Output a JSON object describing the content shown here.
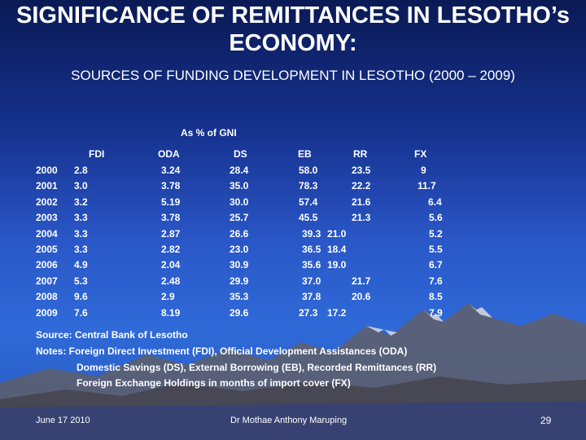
{
  "slide": {
    "title": "SIGNIFICANCE OF REMITTANCES IN LESOTHO’s ECONOMY:",
    "subtitle": "SOURCES OF FUNDING DEVELOPMENT IN LESOTHO (2000 – 2009)",
    "unit_note": "As % of GNI",
    "table": {
      "columns": [
        "FDI",
        "ODA",
        "DS",
        "EB",
        "RR",
        "FX"
      ],
      "rows": [
        {
          "year": "2000",
          "values": [
            "2.8",
            "3.24",
            "28.4",
            "58.0",
            "23.5",
            "9"
          ]
        },
        {
          "year": "2001",
          "values": [
            "3.0",
            "3.78",
            "35.0",
            "78.3",
            "22.2",
            "11.7"
          ]
        },
        {
          "year": "2002",
          "values": [
            "3.2",
            "5.19",
            "30.0",
            "57.4",
            "21.6",
            "6.4"
          ]
        },
        {
          "year": "2003",
          "values": [
            "3.3",
            "3.78",
            "25.7",
            "45.5",
            "21.3",
            "5.6"
          ]
        },
        {
          "year": "2004",
          "values": [
            "3.3",
            "2.87",
            "26.6",
            "39.3",
            "21.0",
            "5.2"
          ]
        },
        {
          "year": "2005",
          "values": [
            "3.3",
            "2.82",
            "23.0",
            "36.5",
            "18.4",
            "5.5"
          ]
        },
        {
          "year": "2006",
          "values": [
            "4.9",
            "2.04",
            "30.9",
            "35.6",
            "19.0",
            "6.7"
          ]
        },
        {
          "year": "2007",
          "values": [
            "5.3",
            "2.48",
            "29.9",
            "37.0",
            "21.7",
            "7.6"
          ]
        },
        {
          "year": "2008",
          "values": [
            "9.6",
            "2.9",
            "35.3",
            "37.8",
            "20.6",
            "8.5"
          ]
        },
        {
          "year": "2009",
          "values": [
            "7.6",
            "8.19",
            "29.6",
            "27.3",
            "17.2",
            "7.9"
          ]
        }
      ]
    },
    "source": "Source: Central Bank of Lesotho",
    "notes": [
      "Notes: Foreign Direct Investment (FDI), Official Development Assistances (ODA)",
      "Domestic Savings (DS), External Borrowing (EB), Recorded Remittances (RR)",
      "Foreign Exchange Holdings in months of import cover (FX)"
    ],
    "footer": {
      "date": "June 17 2010",
      "author": "Dr Mothae Anthony Maruping",
      "page_number": "29"
    },
    "colors": {
      "background_top": "#0a1a55",
      "background_mid": "#2a57c8",
      "text": "#ffffff",
      "mountain": "#6e6e78",
      "snow": "#d8dce6"
    }
  }
}
